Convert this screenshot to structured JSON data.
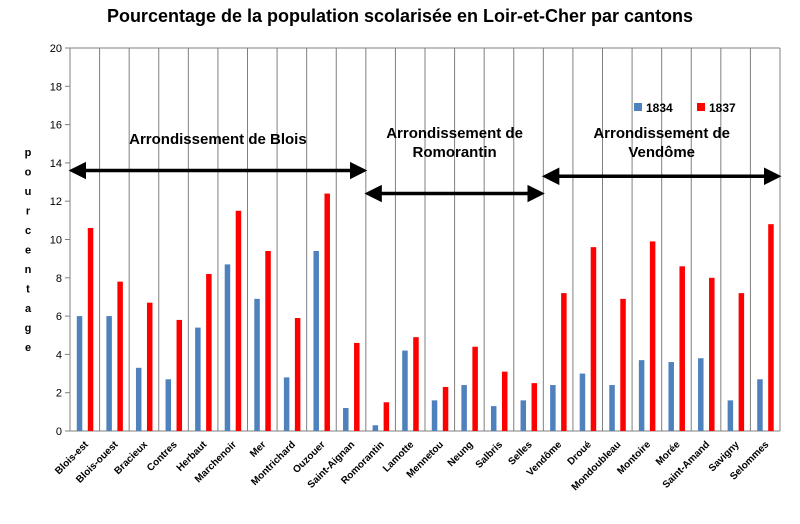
{
  "chart_data": {
    "type": "bar",
    "title": "Pourcentage de la population scolarisée en Loir-et-Cher  par cantons",
    "ylabel": "pourcentage",
    "ylim": [
      0,
      20
    ],
    "yticks": [
      0,
      2,
      4,
      6,
      8,
      10,
      12,
      14,
      16,
      18,
      20
    ],
    "grid": "vertical",
    "legend_position": "top-right",
    "categories": [
      "Blois-est",
      "Blois-ouest",
      "Bracieux",
      "Contres",
      "Herbaut",
      "Marchenoir",
      "Mer",
      "Montrichard",
      "Ouzouer",
      "Saint-Aignan",
      "Romorantin",
      "Lamotte",
      "Mennetou",
      "Neung",
      "Salbris",
      "Selles",
      "Vendôme",
      "Droué",
      "Mondoubleau",
      "Montoire",
      "Morée",
      "Saint-Amand",
      "Savigny",
      "Selommes"
    ],
    "series": [
      {
        "name": "1834",
        "color": "#4f81bd",
        "values": [
          6.0,
          6.0,
          3.3,
          2.7,
          5.4,
          8.7,
          6.9,
          2.8,
          9.4,
          1.2,
          0.3,
          4.2,
          1.6,
          2.4,
          1.3,
          1.6,
          2.4,
          3.0,
          2.4,
          3.7,
          3.6,
          3.8,
          1.6,
          2.7
        ]
      },
      {
        "name": "1837",
        "color": "#ff0000",
        "values": [
          10.6,
          7.8,
          6.7,
          5.8,
          8.2,
          11.5,
          9.4,
          5.9,
          12.4,
          4.6,
          1.5,
          4.9,
          2.3,
          4.4,
          3.1,
          2.5,
          7.2,
          9.6,
          6.9,
          9.9,
          8.6,
          8.0,
          7.2,
          10.8
        ]
      }
    ],
    "annotations": [
      {
        "text_lines": [
          "Arrondissement de Blois"
        ],
        "arrow_level": 13.6,
        "from_index": 0,
        "to_index": 9
      },
      {
        "text_lines": [
          "Arrondissement de",
          "Romorantin"
        ],
        "arrow_level": 12.4,
        "from_index": 10,
        "to_index": 15
      },
      {
        "text_lines": [
          "Arrondissement de",
          "Vendôme"
        ],
        "arrow_level": 13.3,
        "from_index": 16,
        "to_index": 23
      }
    ]
  }
}
